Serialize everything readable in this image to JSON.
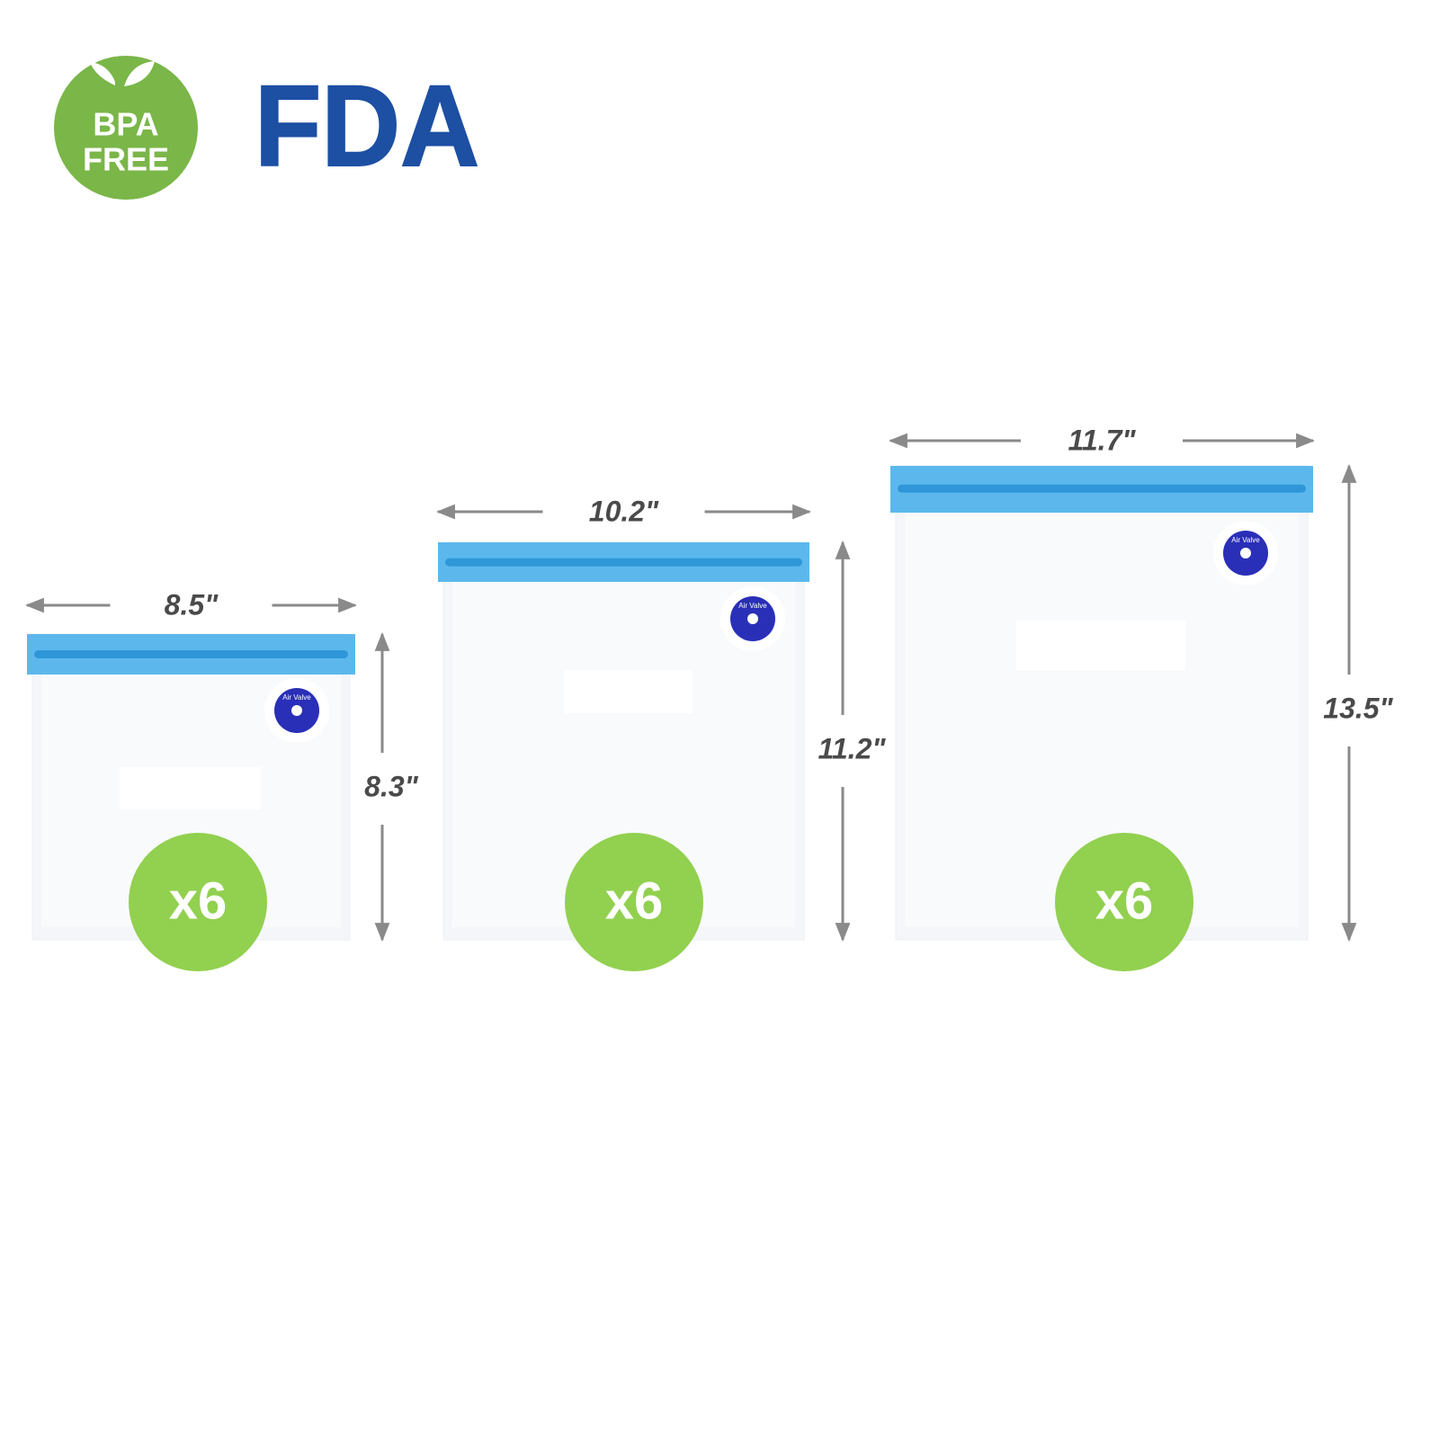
{
  "badges": {
    "bpa": {
      "line1": "BPA",
      "line2": "FREE"
    },
    "fda": "FDA"
  },
  "bags": [
    {
      "width": "8.5\"",
      "height": "8.3\"",
      "count": "x6",
      "valve": "Air Valve"
    },
    {
      "width": "10.2\"",
      "height": "11.2\"",
      "count": "x6",
      "valve": "Air Valve"
    },
    {
      "width": "11.7\"",
      "height": "13.5\"",
      "count": "x6",
      "valve": "Air Valve"
    }
  ]
}
